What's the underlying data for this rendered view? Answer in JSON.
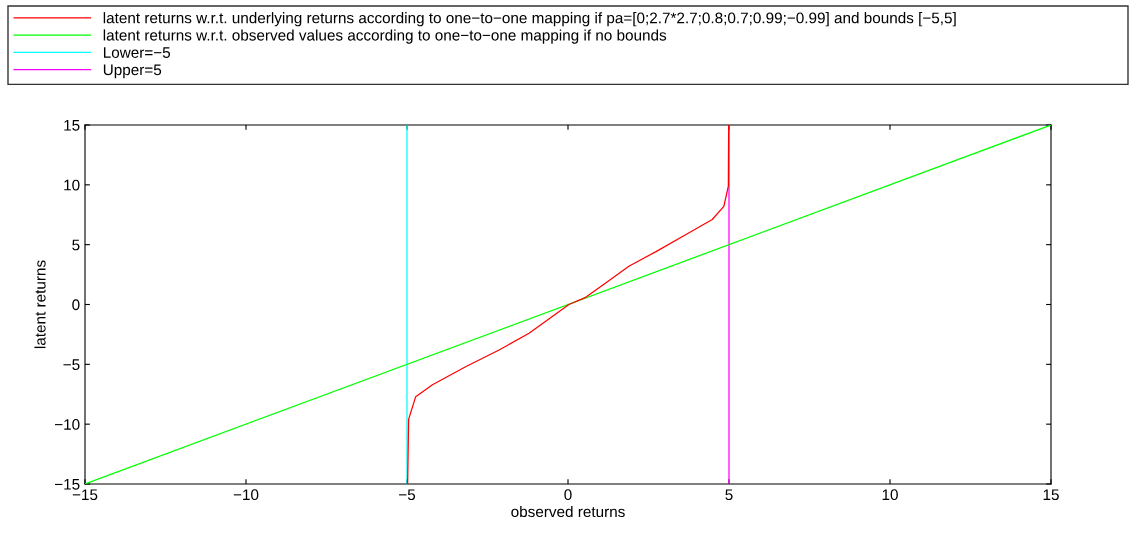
{
  "chart_data": {
    "type": "line",
    "xlabel": "observed returns",
    "ylabel": "latent returns",
    "xlim": [
      -15,
      15
    ],
    "ylim": [
      -15,
      15
    ],
    "xticks": [
      {
        "value": -15,
        "label": "−15"
      },
      {
        "value": -10,
        "label": "−10"
      },
      {
        "value": -5,
        "label": "−5"
      },
      0,
      5,
      10,
      15
    ],
    "yticks": [
      {
        "value": -15,
        "label": "−15"
      },
      {
        "value": -10,
        "label": "−10"
      },
      {
        "value": -5,
        "label": "−5"
      },
      0,
      5,
      10,
      15
    ],
    "grid": false,
    "legend": "top",
    "marker": "none",
    "line_style": "solid",
    "series": [
      {
        "name": "latent returns w.r.t. underlying returns according to one−to−one mapping if pa=[0;2.7*2.7;0.8;0.7;0.99;−0.99] and bounds [−5,5]",
        "color": "#ff0000",
        "x": [
          -4.98,
          -4.95,
          -4.73,
          -4.21,
          -3.18,
          -2.14,
          -1.21,
          -0.8,
          0.03,
          0.55,
          1.17,
          1.89,
          2.72,
          3.76,
          4.48,
          4.84,
          4.98,
          4.99
        ],
        "values": [
          -15,
          -9.6,
          -7.7,
          -6.7,
          -5.2,
          -3.8,
          -2.4,
          -1.6,
          0,
          0.6,
          1.8,
          3.2,
          4.4,
          6,
          7.1,
          8.2,
          9.9,
          15
        ]
      },
      {
        "name": "latent returns w.r.t. observed values according to one−to−one mapping if no bounds",
        "color": "#00ff00",
        "x": [
          -15,
          15
        ],
        "values": [
          -15,
          15
        ]
      },
      {
        "name": "Lower=−5",
        "color": "#00ffff",
        "x": [
          -5,
          -5
        ],
        "values": [
          -15,
          15
        ]
      },
      {
        "name": "Upper=5",
        "color": "#ff00ff",
        "x": [
          5,
          5
        ],
        "values": [
          -15,
          15
        ]
      }
    ]
  }
}
